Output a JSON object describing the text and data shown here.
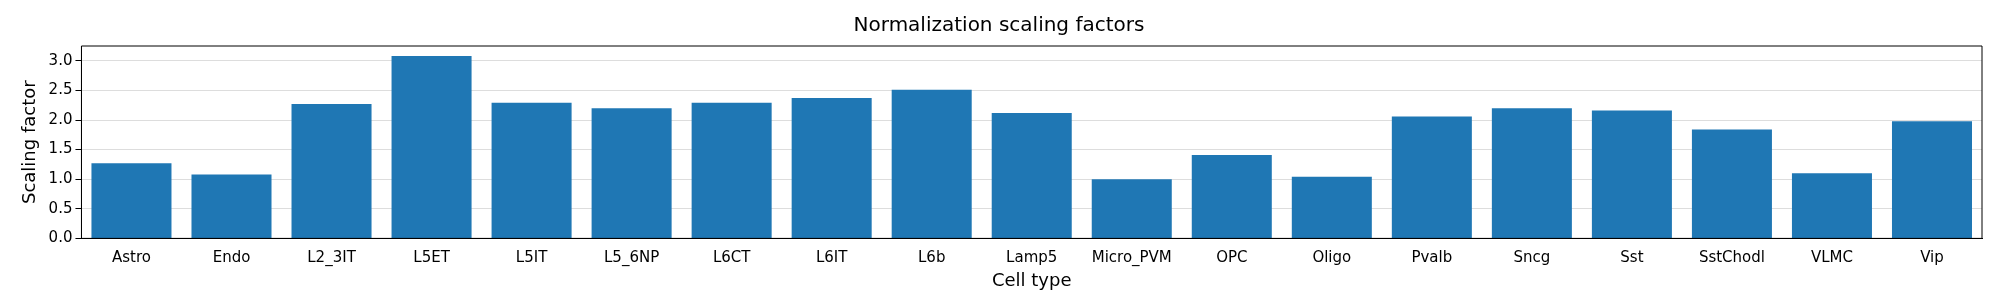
{
  "chart_data": {
    "type": "bar",
    "title": "Normalization scaling factors",
    "xlabel": "Cell type",
    "ylabel": "Scaling factor",
    "categories": [
      "Astro",
      "Endo",
      "L2_3IT",
      "L5ET",
      "L5IT",
      "L5_6NP",
      "L6CT",
      "L6IT",
      "L6b",
      "Lamp5",
      "Micro_PVM",
      "OPC",
      "Oligo",
      "Pvalb",
      "Sncg",
      "Sst",
      "SstChodl",
      "VLMC",
      "Vip"
    ],
    "values": [
      1.27,
      1.08,
      2.27,
      3.08,
      2.29,
      2.2,
      2.29,
      2.37,
      2.51,
      2.12,
      1.0,
      1.41,
      1.04,
      2.06,
      2.2,
      2.16,
      1.84,
      1.1,
      1.98
    ],
    "color": "#1f77b4",
    "ylim": [
      0,
      3.25
    ],
    "yticks": [
      {
        "value": 0,
        "label": "0.0"
      },
      0.5,
      {
        "value": 1,
        "label": "1.0"
      },
      1.5,
      {
        "value": 2,
        "label": "2.0"
      },
      2.5,
      {
        "value": 3,
        "label": "3.0"
      }
    ],
    "grid": "y",
    "legend": false
  }
}
